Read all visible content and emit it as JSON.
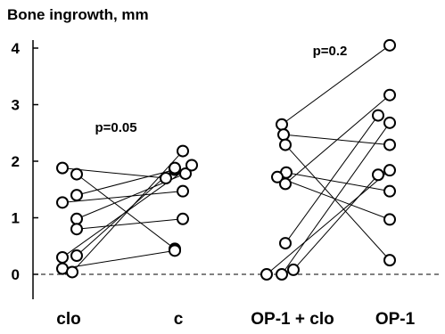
{
  "chart_data": {
    "type": "scatter",
    "ylabel": "Bone ingrowth, mm",
    "ylim": [
      -0.35,
      4.2
    ],
    "yticks": [
      "0",
      "1",
      "2",
      "3",
      "4"
    ],
    "categories": [
      "clo",
      "c",
      "OP-1 + clo",
      "OP-1"
    ],
    "annotations": [
      {
        "text": "p=0.05",
        "group": "clo-c",
        "y": 2.6
      },
      {
        "text": "p=0.2",
        "group": "op1clo-op1",
        "y": 3.95
      }
    ],
    "baseline": {
      "y": 0,
      "style": "dashed"
    },
    "pairs_left": [
      {
        "a": 1.88,
        "b": 1.7
      },
      {
        "a": 1.77,
        "b": 0.45
      },
      {
        "a": 1.4,
        "b": 1.85
      },
      {
        "a": 1.27,
        "b": 1.47
      },
      {
        "a": 0.98,
        "b": 1.78
      },
      {
        "a": 0.8,
        "b": 0.98
      },
      {
        "a": 0.33,
        "b": 1.88
      },
      {
        "a": 0.3,
        "b": 1.93
      },
      {
        "a": 0.1,
        "b": 0.42
      },
      {
        "a": 0.04,
        "b": 2.18
      }
    ],
    "pairs_right": [
      {
        "a": 2.65,
        "b": 4.05
      },
      {
        "a": 2.47,
        "b": 2.29
      },
      {
        "a": 2.29,
        "b": 0.25
      },
      {
        "a": 1.8,
        "b": 1.47
      },
      {
        "a": 1.72,
        "b": 0.97
      },
      {
        "a": 1.6,
        "b": 3.17
      },
      {
        "a": 0.55,
        "b": 2.81
      },
      {
        "a": 0.0,
        "b": 1.84
      },
      {
        "a": 0.0,
        "b": 2.68
      },
      {
        "a": 0.08,
        "b": 1.76
      }
    ]
  }
}
